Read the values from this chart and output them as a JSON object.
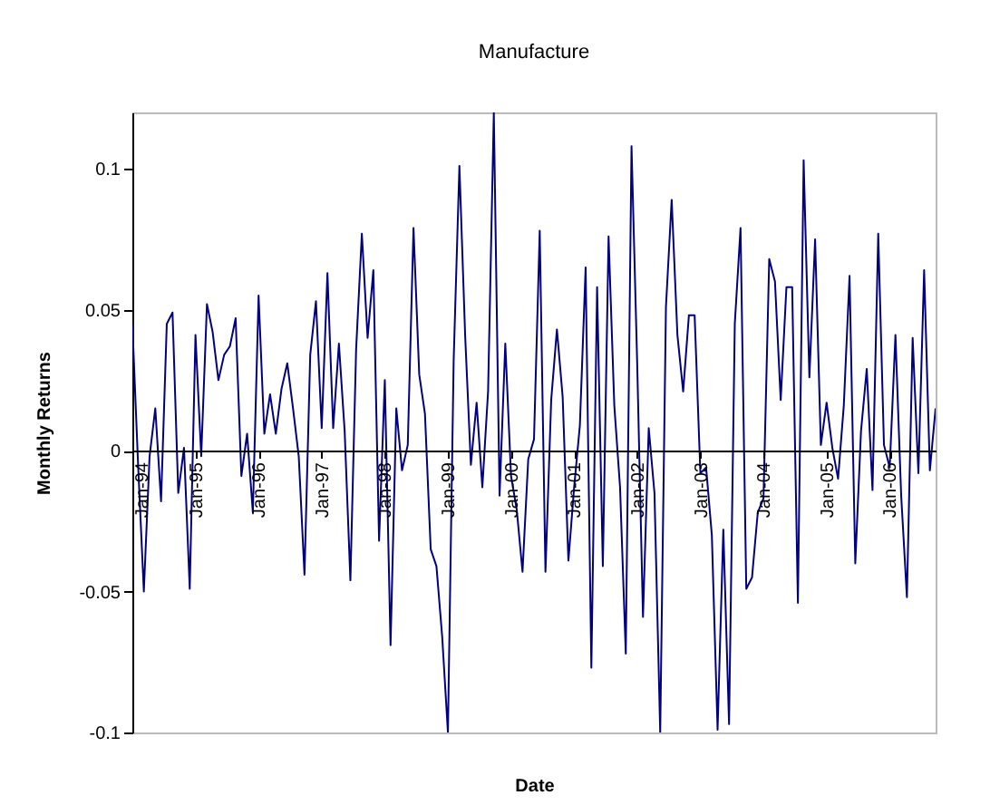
{
  "chart_data": {
    "type": "line",
    "title": "Manufacture",
    "xlabel": "Date",
    "ylabel": "Monthly Returns",
    "categories": [
      "Jan-94",
      null,
      null,
      null,
      null,
      null,
      null,
      null,
      null,
      null,
      null,
      "Jan-95",
      null,
      null,
      null,
      null,
      null,
      null,
      null,
      null,
      null,
      null,
      "Jan-96",
      null,
      null,
      null,
      null,
      null,
      null,
      null,
      null,
      null,
      null,
      "Jan-97",
      null,
      null,
      null,
      null,
      null,
      null,
      null,
      null,
      null,
      null,
      "Jan-98",
      null,
      null,
      null,
      null,
      null,
      null,
      null,
      null,
      null,
      null,
      "Jan-99",
      null,
      null,
      null,
      null,
      null,
      null,
      null,
      null,
      null,
      null,
      "Jan-00",
      null,
      null,
      null,
      null,
      null,
      null,
      null,
      null,
      null,
      null,
      "Jan-01",
      null,
      null,
      null,
      null,
      null,
      null,
      null,
      null,
      null,
      null,
      "Jan-02",
      null,
      null,
      null,
      null,
      null,
      null,
      null,
      null,
      null,
      null,
      "Jan-03",
      null,
      null,
      null,
      null,
      null,
      null,
      null,
      null,
      null,
      null,
      "Jan-04",
      null,
      null,
      null,
      null,
      null,
      null,
      null,
      null,
      null,
      null,
      "Jan-05",
      null,
      null,
      null,
      null,
      null,
      null,
      null,
      null,
      null,
      null,
      "Jan-06",
      null,
      null,
      null,
      null,
      null,
      null,
      null,
      null
    ],
    "series": [
      {
        "color": "#000080",
        "values": [
          0.045,
          -0.005,
          -0.05,
          -0.002,
          0.015,
          -0.018,
          0.045,
          0.049,
          -0.015,
          0.001,
          -0.049,
          0.041,
          -0.002,
          0.052,
          0.042,
          0.025,
          0.034,
          0.037,
          0.047,
          -0.009,
          0.006,
          -0.022,
          0.055,
          0.006,
          0.02,
          0.006,
          0.022,
          0.031,
          0.015,
          -0.002,
          -0.044,
          0.034,
          0.053,
          0.008,
          0.063,
          0.008,
          0.038,
          0.007,
          -0.046,
          0.036,
          0.077,
          0.04,
          0.064,
          -0.032,
          0.025,
          -0.069,
          0.015,
          -0.007,
          0.002,
          0.079,
          0.027,
          0.013,
          -0.035,
          -0.041,
          -0.066,
          -0.1,
          0.032,
          0.101,
          0.041,
          -0.005,
          0.017,
          -0.013,
          0.021,
          0.12,
          -0.016,
          0.038,
          -0.009,
          -0.021,
          -0.043,
          -0.003,
          0.004,
          0.078,
          -0.043,
          0.018,
          0.043,
          0.019,
          -0.039,
          -0.013,
          0.009,
          0.065,
          -0.077,
          0.058,
          -0.041,
          0.076,
          0.016,
          -0.013,
          -0.072,
          0.108,
          0.03,
          -0.059,
          0.008,
          -0.015,
          -0.1,
          0.051,
          0.089,
          0.041,
          0.021,
          0.048,
          0.048,
          -0.008,
          -0.006,
          -0.03,
          -0.099,
          -0.028,
          -0.097,
          0.045,
          0.079,
          -0.049,
          -0.045,
          -0.022,
          -0.017,
          0.068,
          0.06,
          0.018,
          0.058,
          0.058,
          -0.054,
          0.103,
          0.026,
          0.075,
          0.002,
          0.017,
          0.001,
          -0.01,
          0.016,
          0.062,
          -0.04,
          0.007,
          0.029,
          -0.014,
          0.077,
          0.002,
          -0.006,
          0.041,
          -0.016,
          -0.052,
          0.04,
          -0.008,
          0.064,
          -0.007,
          0.015
        ]
      }
    ],
    "ylim": [
      -0.1,
      0.12
    ],
    "yticks": [
      -0.1,
      -0.05,
      0,
      0.05,
      0.1
    ],
    "marker": "none",
    "line_style": "solid"
  }
}
